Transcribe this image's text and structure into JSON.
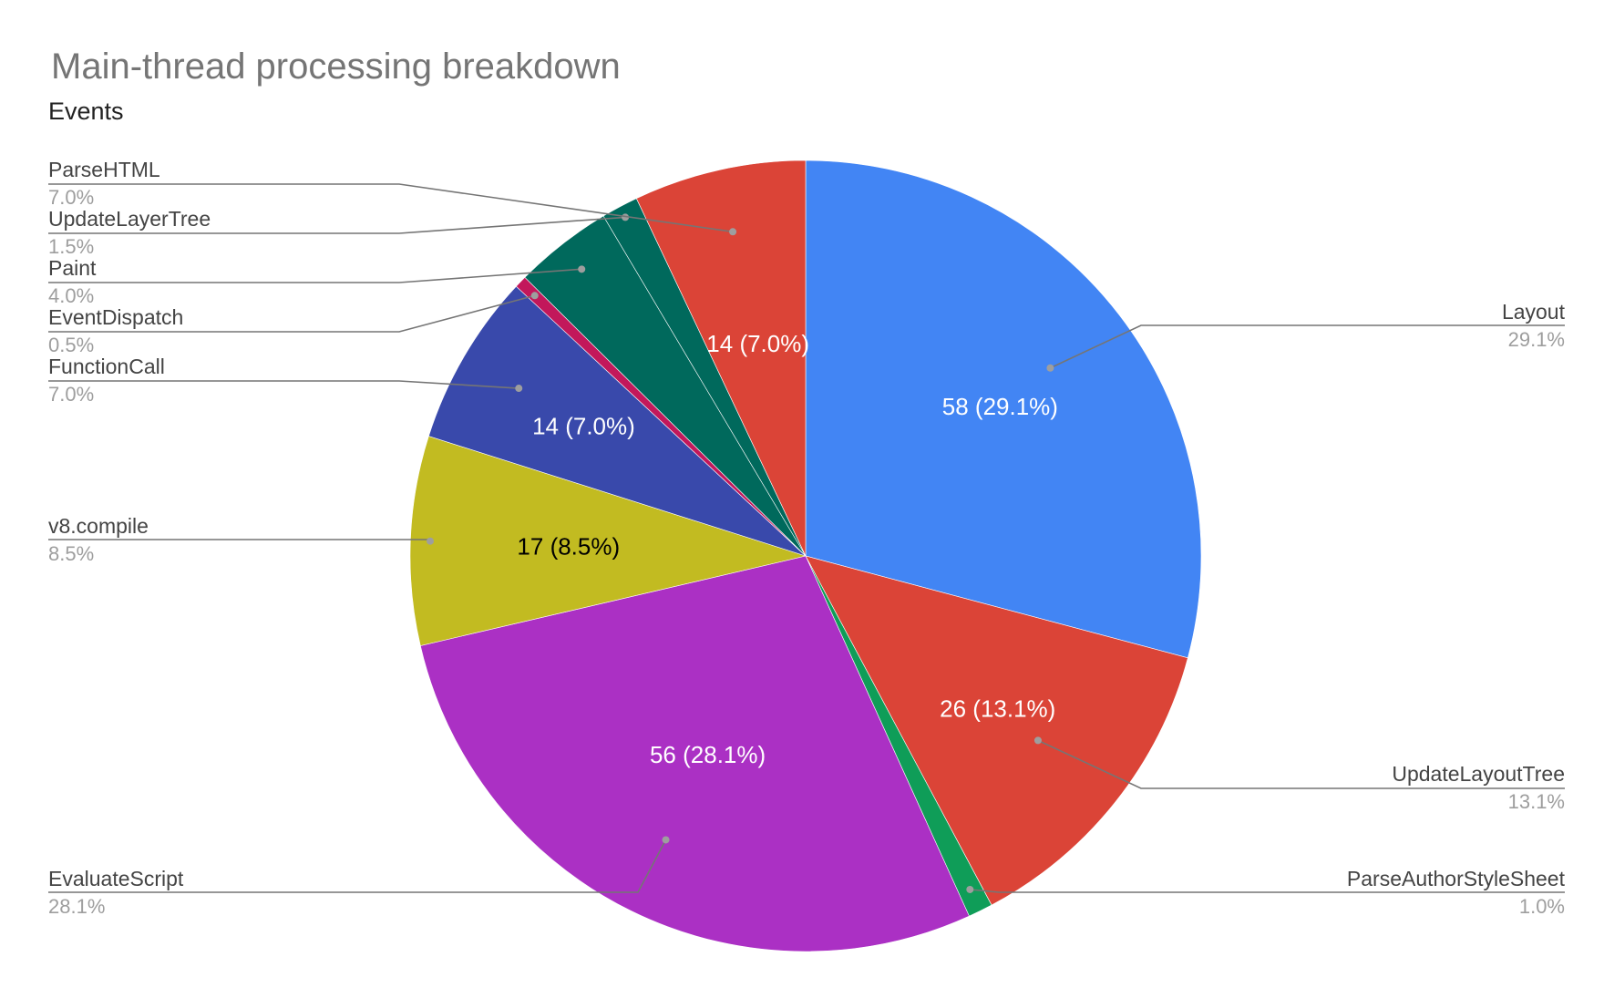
{
  "chart_data": {
    "type": "pie",
    "title": "Main-thread processing breakdown",
    "subtitle": "Events",
    "slices": [
      {
        "name": "Layout",
        "value": 58,
        "percent": "29.1%",
        "inside_label": "58 (29.1%)",
        "color": "#4285f4",
        "label_color": "#ffffff"
      },
      {
        "name": "UpdateLayoutTree",
        "value": 26,
        "percent": "13.1%",
        "inside_label": "26 (13.1%)",
        "color": "#db4437",
        "label_color": "#ffffff"
      },
      {
        "name": "ParseAuthorStyleSheet",
        "value": 2,
        "percent": "1.0%",
        "inside_label": "",
        "color": "#0f9d58",
        "label_color": "#ffffff"
      },
      {
        "name": "EvaluateScript",
        "value": 56,
        "percent": "28.1%",
        "inside_label": "56 (28.1%)",
        "color": "#ab30c4",
        "label_color": "#ffffff"
      },
      {
        "name": "v8.compile",
        "value": 17,
        "percent": "8.5%",
        "inside_label": "17 (8.5%)",
        "color": "#c2bb21",
        "label_color": "#000000"
      },
      {
        "name": "FunctionCall",
        "value": 14,
        "percent": "7.0%",
        "inside_label": "14 (7.0%)",
        "color": "#3949ab",
        "label_color": "#ffffff"
      },
      {
        "name": "EventDispatch",
        "value": 1,
        "percent": "0.5%",
        "inside_label": "",
        "color": "#c2185b",
        "label_color": "#ffffff"
      },
      {
        "name": "Paint",
        "value": 8,
        "percent": "4.0%",
        "inside_label": "",
        "color": "#00695c",
        "label_color": "#ffffff"
      },
      {
        "name": "UpdateLayerTree",
        "value": 3,
        "percent": "1.5%",
        "inside_label": "",
        "color": "#00695c",
        "label_color": "#ffffff"
      },
      {
        "name": "ParseHTML",
        "value": 14,
        "percent": "7.0%",
        "inside_label": "14 (7.0%)",
        "color": "#db4437",
        "label_color": "#ffffff"
      }
    ]
  }
}
